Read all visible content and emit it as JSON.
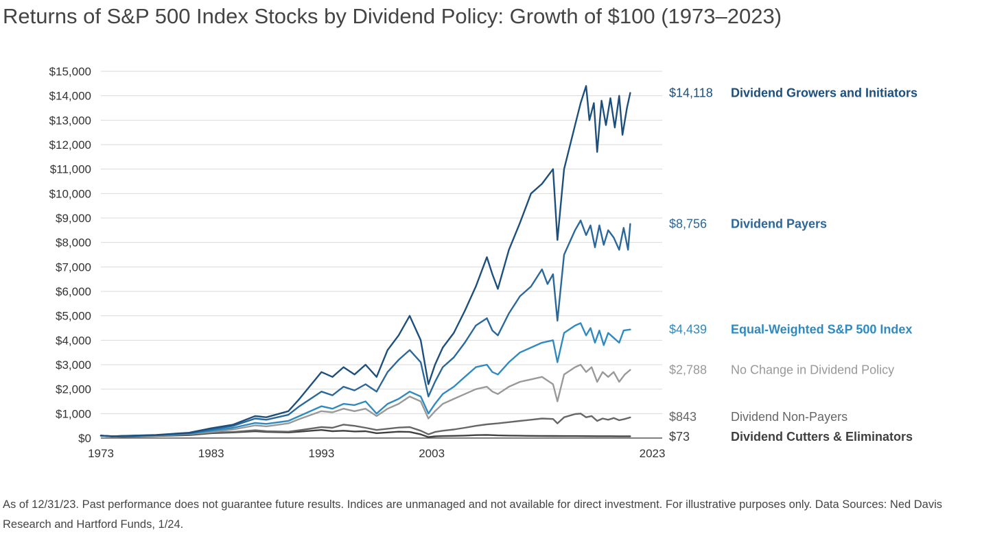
{
  "title": "Returns of S&P 500 Index Stocks by Dividend Policy: Growth of $100 (1973–2023)",
  "footnote": "As of 12/31/23. Past performance does not guarantee future results. Indices are unmanaged and not available for direct investment. For illustrative purposes only. Data Sources: Ned Davis Research and Hartford Funds, 1/24.",
  "chart_data": {
    "type": "line",
    "xlabel": "",
    "ylabel": "",
    "xlim": [
      1973,
      2023.9
    ],
    "ylim": [
      0,
      15000
    ],
    "grid": true,
    "legend": "right end labels",
    "x_tick_labels": [
      "1973",
      "1983",
      "1993",
      "2003",
      "2023"
    ],
    "x_tick_values": [
      1973,
      1983,
      1993,
      2003,
      2023
    ],
    "y_tick_labels": [
      "$0",
      "$1,000",
      "$2,000",
      "$3,000",
      "$4,000",
      "$5,000",
      "$6,000",
      "$7,000",
      "$8,000",
      "$9,000",
      "$10,000",
      "$11,000",
      "$12,000",
      "$13,000",
      "$14,000",
      "$15,000"
    ],
    "y_tick_values": [
      0,
      1000,
      2000,
      3000,
      4000,
      5000,
      6000,
      7000,
      8000,
      9000,
      10000,
      11000,
      12000,
      13000,
      14000,
      15000
    ],
    "series": [
      {
        "name": "Dividend Growers and Initiators",
        "end_label": "$14,118",
        "color": "#1c4f7c",
        "points": [
          [
            1973,
            100
          ],
          [
            1974,
            70
          ],
          [
            1975,
            90
          ],
          [
            1978,
            130
          ],
          [
            1981,
            220
          ],
          [
            1983,
            400
          ],
          [
            1985,
            550
          ],
          [
            1987,
            900
          ],
          [
            1988,
            850
          ],
          [
            1990,
            1100
          ],
          [
            1991,
            1600
          ],
          [
            1993,
            2700
          ],
          [
            1994,
            2500
          ],
          [
            1995,
            2900
          ],
          [
            1996,
            2600
          ],
          [
            1997,
            3000
          ],
          [
            1998,
            2500
          ],
          [
            1999,
            3600
          ],
          [
            2000,
            4200
          ],
          [
            2001,
            5000
          ],
          [
            2002,
            4000
          ],
          [
            2002.7,
            2200
          ],
          [
            2003.3,
            3000
          ],
          [
            2004,
            3700
          ],
          [
            2005,
            4300
          ],
          [
            2006,
            5200
          ],
          [
            2007,
            6200
          ],
          [
            2008,
            7400
          ],
          [
            2008.5,
            6700
          ],
          [
            2009,
            6100
          ],
          [
            2010,
            7700
          ],
          [
            2011,
            8800
          ],
          [
            2012,
            10000
          ],
          [
            2013,
            10400
          ],
          [
            2014,
            11000
          ],
          [
            2014.4,
            8100
          ],
          [
            2015,
            11000
          ],
          [
            2016,
            12800
          ],
          [
            2016.5,
            13700
          ],
          [
            2017,
            14400
          ],
          [
            2017.3,
            13000
          ],
          [
            2017.7,
            13700
          ],
          [
            2018,
            11700
          ],
          [
            2018.4,
            13800
          ],
          [
            2018.8,
            12800
          ],
          [
            2019.2,
            13900
          ],
          [
            2019.6,
            12700
          ],
          [
            2020,
            14000
          ],
          [
            2020.3,
            12400
          ],
          [
            2020.7,
            13500
          ],
          [
            2021,
            14118
          ]
        ]
      },
      {
        "name": "Dividend Payers",
        "end_label": "$8,756",
        "color": "#2a679a",
        "points": [
          [
            1973,
            100
          ],
          [
            1974,
            70
          ],
          [
            1975,
            85
          ],
          [
            1978,
            120
          ],
          [
            1981,
            200
          ],
          [
            1983,
            350
          ],
          [
            1985,
            500
          ],
          [
            1987,
            800
          ],
          [
            1988,
            750
          ],
          [
            1990,
            950
          ],
          [
            1991,
            1300
          ],
          [
            1993,
            1900
          ],
          [
            1994,
            1750
          ],
          [
            1995,
            2100
          ],
          [
            1996,
            1950
          ],
          [
            1997,
            2200
          ],
          [
            1998,
            1900
          ],
          [
            1999,
            2700
          ],
          [
            2000,
            3200
          ],
          [
            2001,
            3600
          ],
          [
            2002,
            3100
          ],
          [
            2002.7,
            1700
          ],
          [
            2003.3,
            2300
          ],
          [
            2004,
            2900
          ],
          [
            2005,
            3300
          ],
          [
            2006,
            3900
          ],
          [
            2007,
            4600
          ],
          [
            2008,
            4900
          ],
          [
            2008.5,
            4400
          ],
          [
            2009,
            4200
          ],
          [
            2010,
            5100
          ],
          [
            2011,
            5800
          ],
          [
            2012,
            6200
          ],
          [
            2013,
            6900
          ],
          [
            2013.5,
            6300
          ],
          [
            2014,
            6700
          ],
          [
            2014.4,
            4800
          ],
          [
            2015,
            7500
          ],
          [
            2016,
            8500
          ],
          [
            2016.5,
            8900
          ],
          [
            2017,
            8300
          ],
          [
            2017.4,
            8700
          ],
          [
            2017.8,
            7800
          ],
          [
            2018.2,
            8700
          ],
          [
            2018.6,
            7900
          ],
          [
            2019,
            8500
          ],
          [
            2019.5,
            8200
          ],
          [
            2020,
            7700
          ],
          [
            2020.4,
            8600
          ],
          [
            2020.8,
            7700
          ],
          [
            2021,
            8756
          ]
        ]
      },
      {
        "name": "Equal-Weighted S&P 500 Index",
        "end_label": "$4,439",
        "color": "#2e8ac0",
        "points": [
          [
            1973,
            100
          ],
          [
            1974,
            70
          ],
          [
            1975,
            85
          ],
          [
            1978,
            115
          ],
          [
            1981,
            180
          ],
          [
            1983,
            300
          ],
          [
            1985,
            420
          ],
          [
            1987,
            620
          ],
          [
            1988,
            580
          ],
          [
            1990,
            700
          ],
          [
            1991,
            900
          ],
          [
            1993,
            1300
          ],
          [
            1994,
            1200
          ],
          [
            1995,
            1400
          ],
          [
            1996,
            1350
          ],
          [
            1997,
            1500
          ],
          [
            1998,
            1000
          ],
          [
            1999,
            1400
          ],
          [
            2000,
            1600
          ],
          [
            2001,
            1900
          ],
          [
            2002,
            1700
          ],
          [
            2002.7,
            1000
          ],
          [
            2003.3,
            1400
          ],
          [
            2004,
            1800
          ],
          [
            2005,
            2100
          ],
          [
            2006,
            2500
          ],
          [
            2007,
            2900
          ],
          [
            2008,
            3000
          ],
          [
            2008.5,
            2700
          ],
          [
            2009,
            2600
          ],
          [
            2010,
            3100
          ],
          [
            2011,
            3500
          ],
          [
            2012,
            3700
          ],
          [
            2013,
            3900
          ],
          [
            2014,
            4000
          ],
          [
            2014.4,
            3100
          ],
          [
            2015,
            4300
          ],
          [
            2016,
            4600
          ],
          [
            2016.5,
            4700
          ],
          [
            2017,
            4200
          ],
          [
            2017.4,
            4500
          ],
          [
            2017.8,
            3900
          ],
          [
            2018.2,
            4400
          ],
          [
            2018.6,
            3800
          ],
          [
            2019,
            4300
          ],
          [
            2019.5,
            4100
          ],
          [
            2020,
            3900
          ],
          [
            2020.4,
            4400
          ],
          [
            2021,
            4439
          ]
        ]
      },
      {
        "name": "No Change in Dividend Policy",
        "end_label": "$2,788",
        "color": "#999999",
        "points": [
          [
            1973,
            100
          ],
          [
            1974,
            65
          ],
          [
            1975,
            80
          ],
          [
            1978,
            105
          ],
          [
            1981,
            160
          ],
          [
            1983,
            250
          ],
          [
            1985,
            350
          ],
          [
            1987,
            520
          ],
          [
            1988,
            480
          ],
          [
            1990,
            600
          ],
          [
            1991,
            780
          ],
          [
            1993,
            1100
          ],
          [
            1994,
            1050
          ],
          [
            1995,
            1200
          ],
          [
            1996,
            1100
          ],
          [
            1997,
            1200
          ],
          [
            1998,
            900
          ],
          [
            1999,
            1200
          ],
          [
            2000,
            1400
          ],
          [
            2001,
            1700
          ],
          [
            2002,
            1500
          ],
          [
            2002.7,
            800
          ],
          [
            2003.3,
            1100
          ],
          [
            2004,
            1400
          ],
          [
            2005,
            1600
          ],
          [
            2006,
            1800
          ],
          [
            2007,
            2000
          ],
          [
            2008,
            2100
          ],
          [
            2008.5,
            1900
          ],
          [
            2009,
            1800
          ],
          [
            2010,
            2100
          ],
          [
            2011,
            2300
          ],
          [
            2012,
            2400
          ],
          [
            2013,
            2500
          ],
          [
            2014,
            2200
          ],
          [
            2014.4,
            1500
          ],
          [
            2015,
            2600
          ],
          [
            2016,
            2900
          ],
          [
            2016.5,
            3000
          ],
          [
            2017,
            2700
          ],
          [
            2017.5,
            2900
          ],
          [
            2018,
            2300
          ],
          [
            2018.5,
            2700
          ],
          [
            2019,
            2500
          ],
          [
            2019.5,
            2700
          ],
          [
            2020,
            2300
          ],
          [
            2020.5,
            2600
          ],
          [
            2021,
            2788
          ]
        ]
      },
      {
        "name": "Dividend Non-Payers",
        "end_label": "$843",
        "color": "#666666",
        "points": [
          [
            1973,
            100
          ],
          [
            1975,
            60
          ],
          [
            1978,
            90
          ],
          [
            1981,
            150
          ],
          [
            1983,
            220
          ],
          [
            1985,
            250
          ],
          [
            1987,
            320
          ],
          [
            1988,
            280
          ],
          [
            1990,
            260
          ],
          [
            1991,
            320
          ],
          [
            1993,
            450
          ],
          [
            1994,
            420
          ],
          [
            1995,
            550
          ],
          [
            1996,
            500
          ],
          [
            1997,
            420
          ],
          [
            1998,
            330
          ],
          [
            1999,
            380
          ],
          [
            2000,
            430
          ],
          [
            2001,
            450
          ],
          [
            2002,
            300
          ],
          [
            2002.7,
            150
          ],
          [
            2003.3,
            250
          ],
          [
            2004,
            300
          ],
          [
            2005,
            350
          ],
          [
            2006,
            420
          ],
          [
            2007,
            500
          ],
          [
            2008,
            560
          ],
          [
            2009,
            600
          ],
          [
            2010,
            650
          ],
          [
            2011,
            700
          ],
          [
            2012,
            750
          ],
          [
            2013,
            800
          ],
          [
            2014,
            780
          ],
          [
            2014.4,
            600
          ],
          [
            2015,
            850
          ],
          [
            2016,
            980
          ],
          [
            2016.5,
            1000
          ],
          [
            2017,
            850
          ],
          [
            2017.5,
            900
          ],
          [
            2018,
            700
          ],
          [
            2018.5,
            800
          ],
          [
            2019,
            750
          ],
          [
            2019.5,
            820
          ],
          [
            2020,
            730
          ],
          [
            2020.5,
            780
          ],
          [
            2021,
            843
          ]
        ]
      },
      {
        "name": "Dividend Cutters & Eliminators",
        "end_label": "$73",
        "color": "#404040",
        "points": [
          [
            1973,
            100
          ],
          [
            1975,
            50
          ],
          [
            1978,
            80
          ],
          [
            1981,
            120
          ],
          [
            1983,
            200
          ],
          [
            1985,
            230
          ],
          [
            1987,
            280
          ],
          [
            1988,
            250
          ],
          [
            1990,
            230
          ],
          [
            1991,
            260
          ],
          [
            1993,
            330
          ],
          [
            1994,
            280
          ],
          [
            1995,
            300
          ],
          [
            1996,
            270
          ],
          [
            1997,
            280
          ],
          [
            1998,
            200
          ],
          [
            1999,
            230
          ],
          [
            2000,
            260
          ],
          [
            2001,
            250
          ],
          [
            2002,
            150
          ],
          [
            2002.7,
            40
          ],
          [
            2003.3,
            70
          ],
          [
            2004,
            80
          ],
          [
            2005,
            90
          ],
          [
            2006,
            100
          ],
          [
            2007,
            120
          ],
          [
            2008,
            130
          ],
          [
            2009,
            110
          ],
          [
            2010,
            100
          ],
          [
            2011,
            95
          ],
          [
            2012,
            90
          ],
          [
            2013,
            88
          ],
          [
            2014,
            85
          ],
          [
            2015,
            82
          ],
          [
            2016,
            80
          ],
          [
            2017,
            78
          ],
          [
            2018,
            75
          ],
          [
            2019,
            76
          ],
          [
            2020,
            74
          ],
          [
            2021,
            73
          ]
        ]
      }
    ]
  }
}
